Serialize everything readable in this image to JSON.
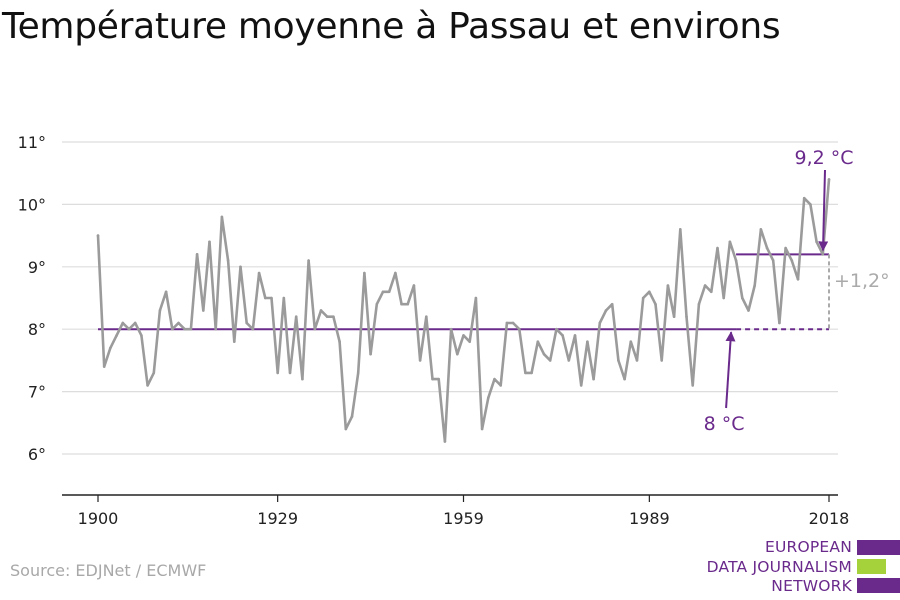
{
  "title": "Température moyenne à Passau et environs",
  "source": "Source: EDJNet / ECMWF",
  "logo": {
    "lines": [
      "EUROPEAN",
      "DATA JOURNALISM",
      "NETWORK"
    ]
  },
  "colors": {
    "line": "#9b9b9b",
    "accent": "#6a2a8c",
    "grid": "#dddddd",
    "diff": "#aaaaaa",
    "logo_green": "#a5d13a"
  },
  "chart_data": {
    "type": "line",
    "title": "Température moyenne à Passau et environs",
    "xlabel": "",
    "ylabel": "",
    "xlim": [
      1900,
      2019
    ],
    "ylim": [
      5.3,
      11.2
    ],
    "x_ticks": [
      1900,
      1929,
      1959,
      1989,
      2018
    ],
    "x_tick_labels": [
      "1900",
      "1929",
      "1959",
      "1989",
      "2018"
    ],
    "y_ticks": [
      6,
      7,
      8,
      9,
      10,
      11
    ],
    "y_tick_labels": [
      "6°",
      "7°",
      "8°",
      "9°",
      "10°",
      "11°"
    ],
    "grid": true,
    "series": [
      {
        "x": [
          1900,
          1901,
          1902,
          1903,
          1904,
          1905,
          1906,
          1907,
          1908,
          1909,
          1910,
          1911,
          1912,
          1913,
          1914,
          1915,
          1916,
          1917,
          1918,
          1919,
          1920,
          1921,
          1922,
          1923,
          1924,
          1925,
          1926,
          1927,
          1928,
          1929,
          1930,
          1931,
          1932,
          1933,
          1934,
          1935,
          1936,
          1937,
          1938,
          1939,
          1940,
          1941,
          1942,
          1943,
          1944,
          1945,
          1946,
          1947,
          1948,
          1949,
          1950,
          1951,
          1952,
          1953,
          1954,
          1955,
          1956,
          1957,
          1958,
          1959,
          1960,
          1961,
          1962,
          1963,
          1964,
          1965,
          1966,
          1967,
          1968,
          1969,
          1970,
          1971,
          1972,
          1973,
          1974,
          1975,
          1976,
          1977,
          1978,
          1979,
          1980,
          1981,
          1982,
          1983,
          1984,
          1985,
          1986,
          1987,
          1988,
          1989,
          1990,
          1991,
          1992,
          1993,
          1994,
          1995,
          1996,
          1997,
          1998,
          1999,
          2000,
          2001,
          2002,
          2003,
          2004,
          2005,
          2006,
          2007,
          2008,
          2009,
          2010,
          2011,
          2012,
          2013,
          2014,
          2015,
          2016,
          2017,
          2018
        ],
        "values": [
          9.5,
          7.4,
          7.7,
          7.9,
          8.1,
          8.0,
          8.1,
          7.9,
          7.1,
          7.3,
          8.3,
          8.6,
          8.0,
          8.1,
          8.0,
          8.0,
          9.2,
          8.3,
          9.4,
          8.0,
          9.8,
          9.1,
          7.8,
          9.0,
          8.1,
          8.0,
          8.9,
          8.5,
          8.5,
          7.3,
          8.5,
          7.3,
          8.2,
          7.2,
          9.1,
          8.0,
          8.3,
          8.2,
          8.2,
          7.8,
          6.4,
          6.6,
          7.3,
          8.9,
          7.6,
          8.4,
          8.6,
          8.6,
          8.9,
          8.4,
          8.4,
          8.7,
          7.5,
          8.2,
          7.2,
          7.2,
          6.2,
          8.0,
          7.6,
          7.9,
          7.8,
          8.5,
          6.4,
          6.9,
          7.2,
          7.1,
          8.1,
          8.1,
          8.0,
          7.3,
          7.3,
          7.8,
          7.6,
          7.5,
          8.0,
          7.9,
          7.5,
          7.9,
          7.1,
          7.8,
          7.2,
          8.1,
          8.3,
          8.4,
          7.5,
          7.2,
          7.8,
          7.5,
          8.5,
          8.6,
          8.4,
          7.5,
          8.7,
          8.2,
          9.6,
          8.2,
          7.1,
          8.4,
          8.7,
          8.6,
          9.3,
          8.5,
          9.4,
          9.1,
          8.5,
          8.3,
          8.7,
          9.6,
          9.3,
          9.1,
          8.1,
          9.3,
          9.1,
          8.8,
          10.1,
          10.0,
          9.4,
          9.2,
          10.4
        ]
      }
    ],
    "reference_lines": [
      {
        "label": "8 °C",
        "value": 8.0,
        "x_start": 1900,
        "x_end": 2003,
        "dashed_to": 2018
      },
      {
        "label": "9,2 °C",
        "value": 9.2,
        "x_start": 2003,
        "x_end": 2018
      }
    ],
    "difference_label": "+1,2°"
  }
}
